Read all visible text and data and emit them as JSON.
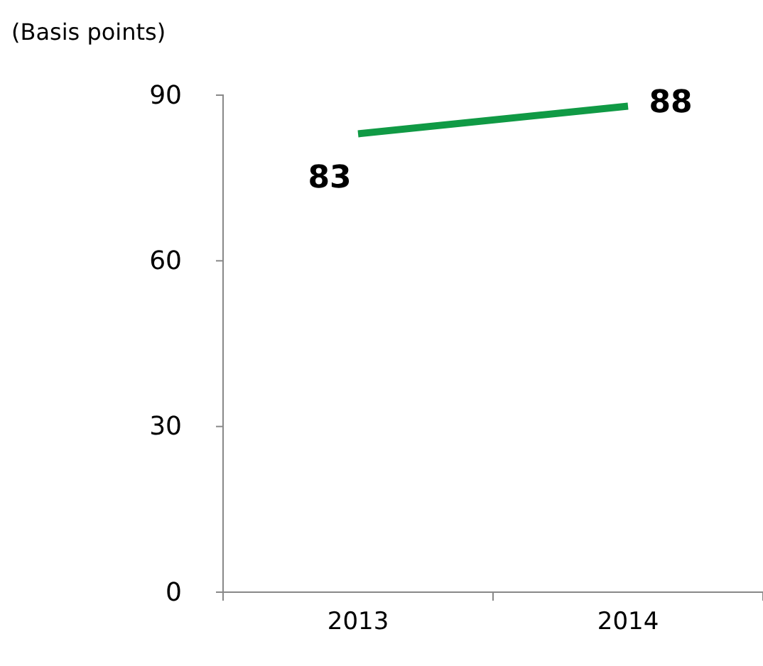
{
  "chart_data": {
    "type": "line",
    "ylabel": "(Basis points)",
    "categories": [
      "2013",
      "2014"
    ],
    "series": [
      {
        "color": "#109a45",
        "values": [
          83,
          88
        ]
      }
    ],
    "ylim": [
      0,
      90
    ],
    "yticks": [
      0,
      30,
      60,
      90
    ],
    "data_labels": true,
    "marker": "none"
  }
}
